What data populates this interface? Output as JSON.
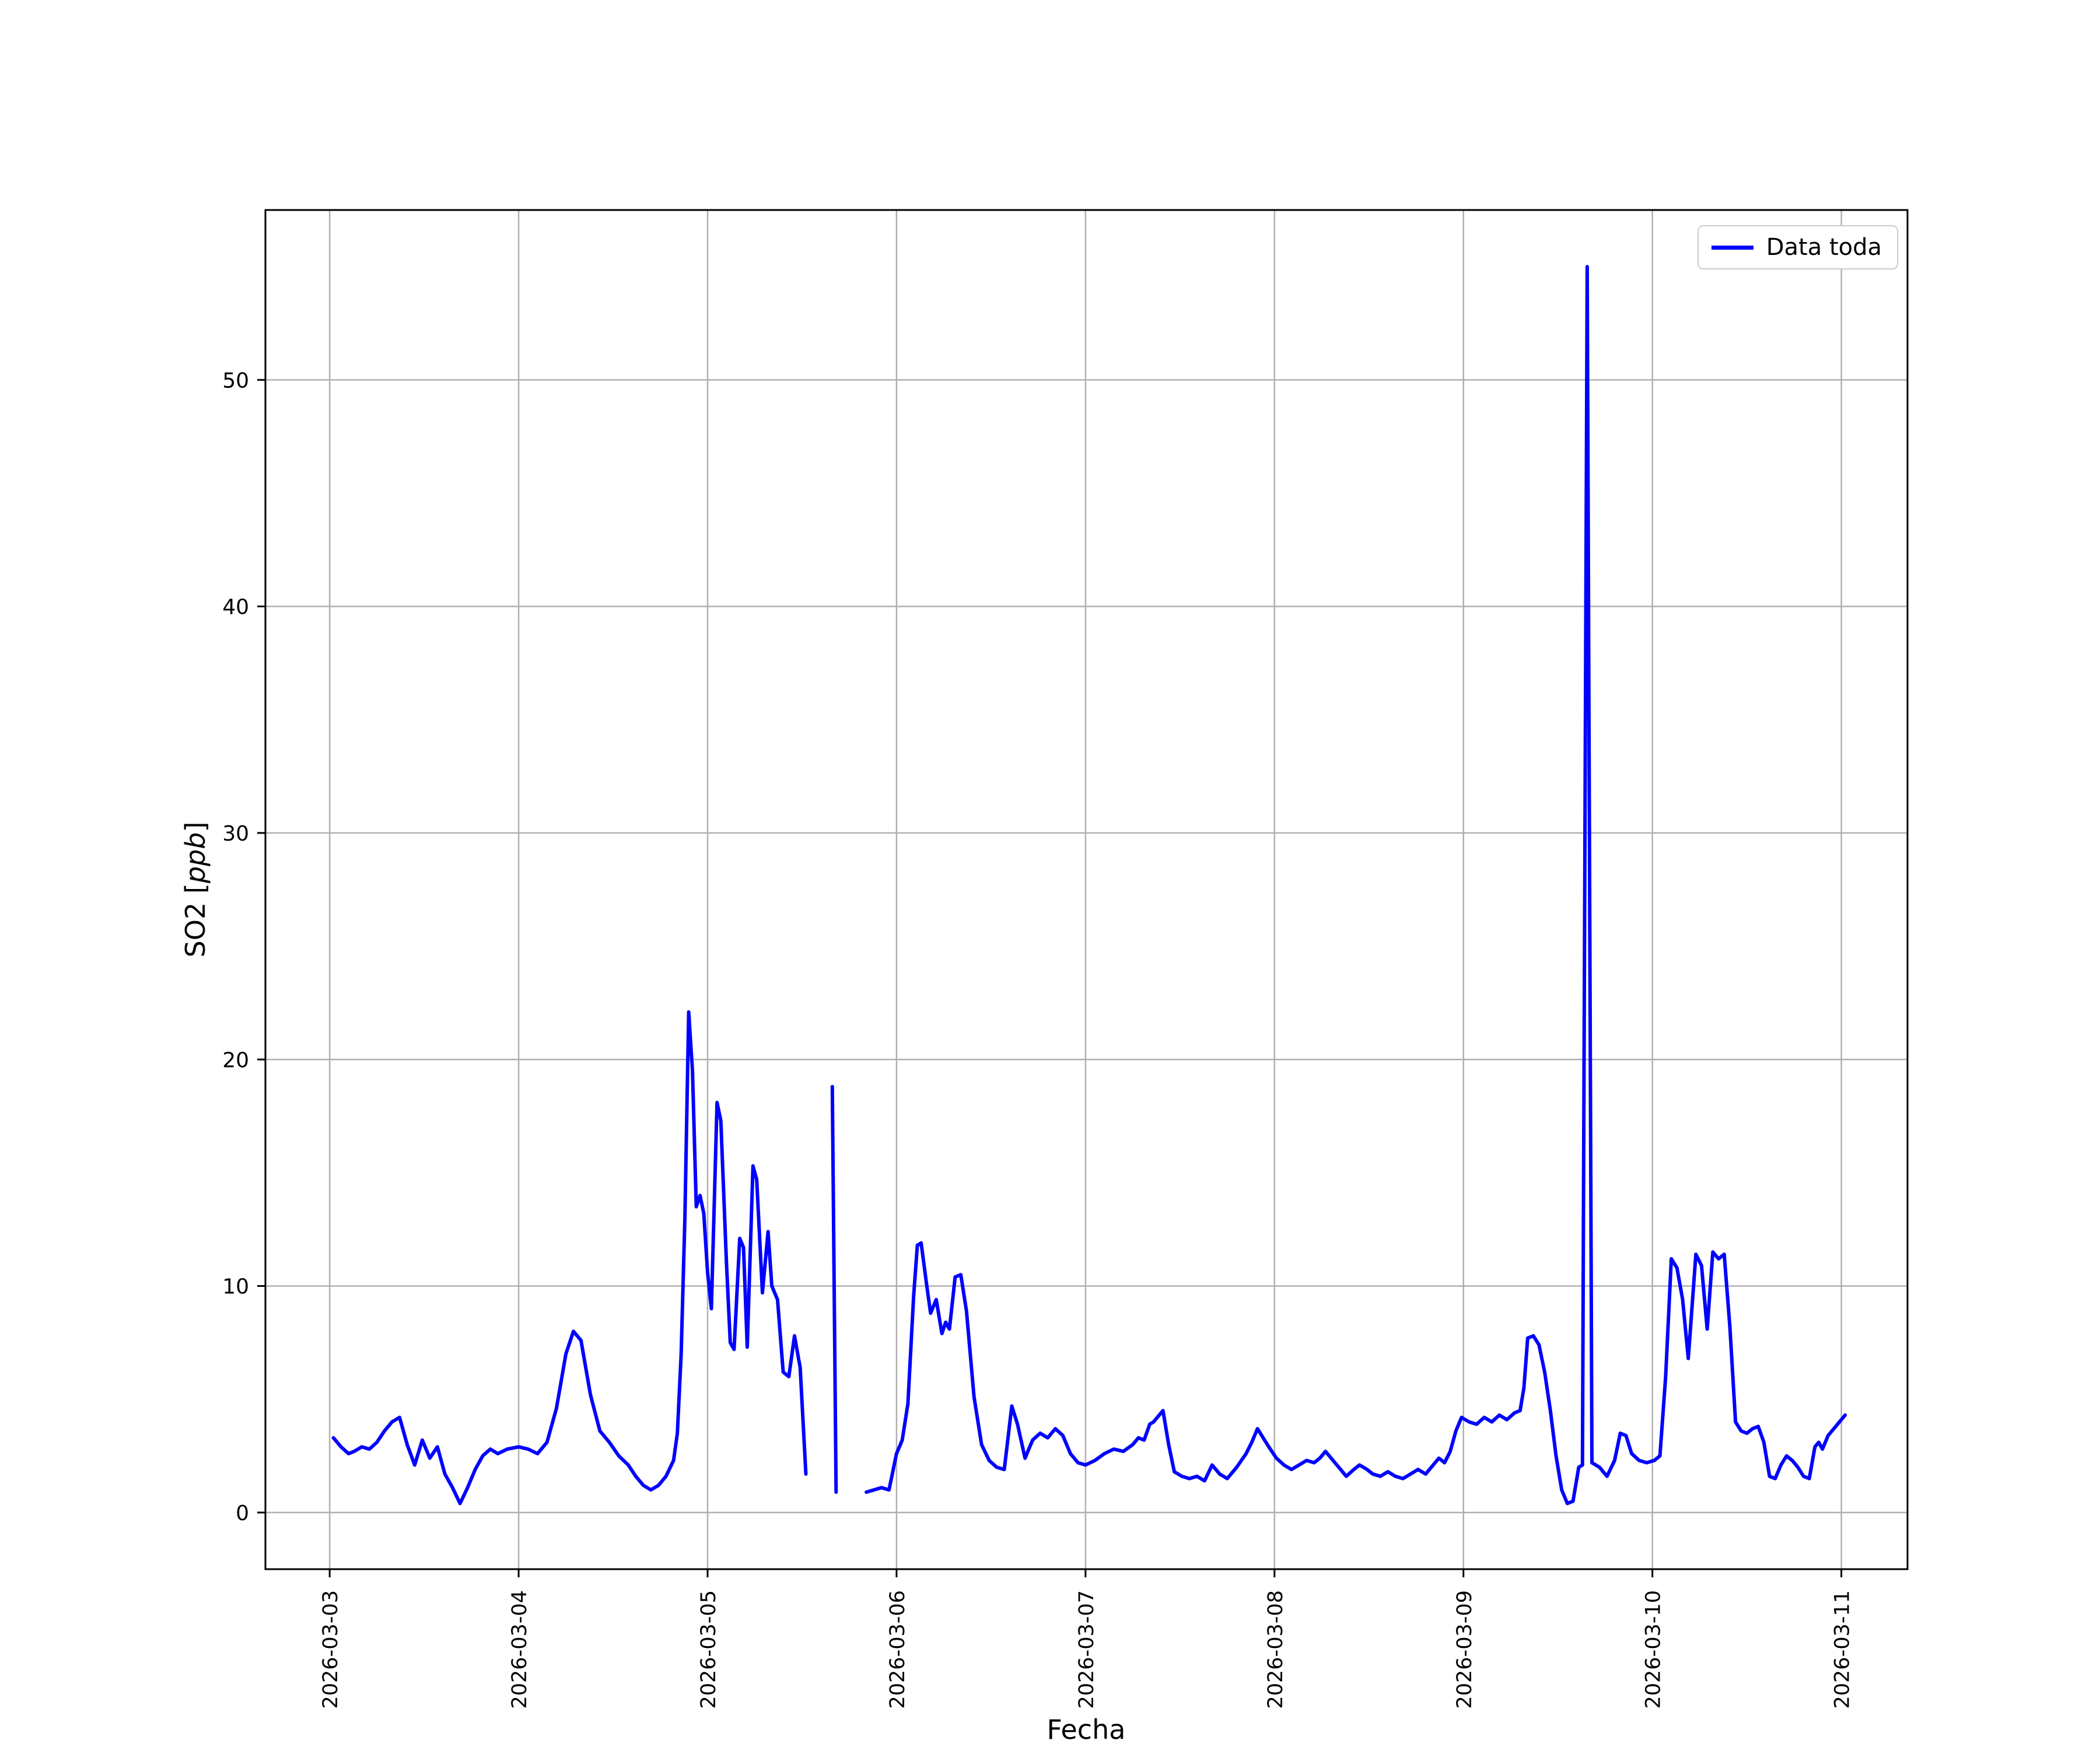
{
  "chart_data": {
    "type": "line",
    "title": "",
    "xlabel": "Fecha",
    "ylabel": "SO2 [ppb]",
    "ylabel_prefix": "SO2 [",
    "ylabel_italic": "ppb",
    "ylabel_suffix": "]",
    "x_unit": "days since 2026-03-03",
    "xlim": [
      -0.34,
      8.35
    ],
    "ylim": [
      -2.5,
      57.5
    ],
    "grid": true,
    "grid_color": "#b0b0b0",
    "line_color": "#0000ff",
    "x_ticks": [
      0,
      1,
      2,
      3,
      4,
      5,
      6,
      7,
      8
    ],
    "x_tick_labels": [
      "2026-03-03",
      "2026-03-04",
      "2026-03-05",
      "2026-03-06",
      "2026-03-07",
      "2026-03-08",
      "2026-03-09",
      "2026-03-10",
      "2026-03-11"
    ],
    "y_ticks": [
      0,
      10,
      20,
      30,
      40,
      50
    ],
    "y_tick_labels": [
      "0",
      "10",
      "20",
      "30",
      "40",
      "50"
    ],
    "legend": {
      "label": "Data toda",
      "position": "upper right"
    },
    "series": [
      {
        "name": "Data toda",
        "points": [
          [
            0.02,
            3.3
          ],
          [
            0.06,
            2.9
          ],
          [
            0.1,
            2.6
          ],
          [
            0.13,
            2.7
          ],
          [
            0.17,
            2.9
          ],
          [
            0.21,
            2.8
          ],
          [
            0.25,
            3.1
          ],
          [
            0.29,
            3.6
          ],
          [
            0.33,
            4.0
          ],
          [
            0.37,
            4.2
          ],
          [
            0.41,
            3.0
          ],
          [
            0.45,
            2.1
          ],
          [
            0.49,
            3.2
          ],
          [
            0.53,
            2.4
          ],
          [
            0.57,
            2.9
          ],
          [
            0.61,
            1.7
          ],
          [
            0.65,
            1.1
          ],
          [
            0.69,
            0.4
          ],
          [
            0.73,
            1.1
          ],
          [
            0.77,
            1.9
          ],
          [
            0.81,
            2.5
          ],
          [
            0.85,
            2.8
          ],
          [
            0.89,
            2.6
          ],
          [
            0.94,
            2.8
          ],
          [
            1.0,
            2.9
          ],
          [
            1.05,
            2.8
          ],
          [
            1.1,
            2.6
          ],
          [
            1.15,
            3.1
          ],
          [
            1.2,
            4.6
          ],
          [
            1.25,
            7.0
          ],
          [
            1.29,
            8.0
          ],
          [
            1.33,
            7.6
          ],
          [
            1.38,
            5.2
          ],
          [
            1.43,
            3.6
          ],
          [
            1.48,
            3.1
          ],
          [
            1.53,
            2.5
          ],
          [
            1.58,
            2.1
          ],
          [
            1.62,
            1.6
          ],
          [
            1.66,
            1.2
          ],
          [
            1.7,
            1.0
          ],
          [
            1.74,
            1.2
          ],
          [
            1.78,
            1.6
          ],
          [
            1.82,
            2.3
          ],
          [
            1.84,
            3.5
          ],
          [
            1.86,
            7.0
          ],
          [
            1.88,
            13.0
          ],
          [
            1.9,
            22.1
          ],
          [
            1.92,
            19.5
          ],
          [
            1.94,
            13.5
          ],
          [
            1.96,
            14.0
          ],
          [
            1.98,
            13.2
          ],
          [
            2.0,
            10.6
          ],
          [
            2.02,
            9.0
          ],
          [
            2.05,
            18.1
          ],
          [
            2.07,
            17.3
          ],
          [
            2.1,
            11.0
          ],
          [
            2.12,
            7.5
          ],
          [
            2.14,
            7.2
          ],
          [
            2.17,
            12.1
          ],
          [
            2.19,
            11.7
          ],
          [
            2.21,
            7.3
          ],
          [
            2.24,
            15.3
          ],
          [
            2.26,
            14.7
          ],
          [
            2.29,
            9.7
          ],
          [
            2.32,
            12.4
          ],
          [
            2.34,
            10.0
          ],
          [
            2.37,
            9.4
          ],
          [
            2.4,
            6.2
          ],
          [
            2.43,
            6.0
          ],
          [
            2.46,
            7.8
          ],
          [
            2.49,
            6.4
          ],
          [
            2.52,
            1.7
          ],
          null,
          [
            2.66,
            18.8
          ],
          [
            2.68,
            0.9
          ],
          null,
          [
            2.84,
            0.9
          ],
          [
            2.88,
            1.0
          ],
          [
            2.92,
            1.1
          ],
          [
            2.96,
            1.0
          ],
          [
            3.0,
            2.6
          ],
          [
            3.03,
            3.2
          ],
          [
            3.06,
            4.8
          ],
          [
            3.09,
            9.5
          ],
          [
            3.11,
            11.8
          ],
          [
            3.13,
            11.9
          ],
          [
            3.16,
            10.0
          ],
          [
            3.18,
            8.8
          ],
          [
            3.21,
            9.4
          ],
          [
            3.24,
            7.9
          ],
          [
            3.26,
            8.4
          ],
          [
            3.28,
            8.1
          ],
          [
            3.31,
            10.4
          ],
          [
            3.34,
            10.5
          ],
          [
            3.37,
            8.9
          ],
          [
            3.41,
            5.1
          ],
          [
            3.45,
            3.0
          ],
          [
            3.49,
            2.3
          ],
          [
            3.53,
            2.0
          ],
          [
            3.57,
            1.9
          ],
          [
            3.61,
            4.7
          ],
          [
            3.64,
            3.9
          ],
          [
            3.68,
            2.4
          ],
          [
            3.72,
            3.2
          ],
          [
            3.76,
            3.5
          ],
          [
            3.8,
            3.3
          ],
          [
            3.84,
            3.7
          ],
          [
            3.88,
            3.4
          ],
          [
            3.92,
            2.6
          ],
          [
            3.96,
            2.2
          ],
          [
            4.0,
            2.1
          ],
          [
            4.05,
            2.3
          ],
          [
            4.1,
            2.6
          ],
          [
            4.15,
            2.8
          ],
          [
            4.2,
            2.7
          ],
          [
            4.25,
            3.0
          ],
          [
            4.28,
            3.3
          ],
          [
            4.31,
            3.2
          ],
          [
            4.34,
            3.9
          ],
          [
            4.36,
            4.0
          ],
          [
            4.39,
            4.3
          ],
          [
            4.41,
            4.5
          ],
          [
            4.44,
            3.0
          ],
          [
            4.47,
            1.8
          ],
          [
            4.51,
            1.6
          ],
          [
            4.55,
            1.5
          ],
          [
            4.59,
            1.6
          ],
          [
            4.63,
            1.4
          ],
          [
            4.67,
            2.1
          ],
          [
            4.71,
            1.7
          ],
          [
            4.75,
            1.5
          ],
          [
            4.8,
            2.0
          ],
          [
            4.85,
            2.6
          ],
          [
            4.88,
            3.1
          ],
          [
            4.91,
            3.7
          ],
          [
            4.94,
            3.3
          ],
          [
            4.97,
            2.9
          ],
          [
            5.01,
            2.4
          ],
          [
            5.05,
            2.1
          ],
          [
            5.09,
            1.9
          ],
          [
            5.13,
            2.1
          ],
          [
            5.17,
            2.3
          ],
          [
            5.21,
            2.2
          ],
          [
            5.24,
            2.4
          ],
          [
            5.27,
            2.7
          ],
          [
            5.31,
            2.3
          ],
          [
            5.35,
            1.9
          ],
          [
            5.38,
            1.6
          ],
          [
            5.42,
            1.9
          ],
          [
            5.45,
            2.1
          ],
          [
            5.49,
            1.9
          ],
          [
            5.52,
            1.7
          ],
          [
            5.56,
            1.6
          ],
          [
            5.6,
            1.8
          ],
          [
            5.64,
            1.6
          ],
          [
            5.68,
            1.5
          ],
          [
            5.72,
            1.7
          ],
          [
            5.76,
            1.9
          ],
          [
            5.8,
            1.7
          ],
          [
            5.84,
            2.1
          ],
          [
            5.87,
            2.4
          ],
          [
            5.9,
            2.2
          ],
          [
            5.93,
            2.7
          ],
          [
            5.96,
            3.6
          ],
          [
            5.99,
            4.2
          ],
          [
            6.03,
            4.0
          ],
          [
            6.07,
            3.9
          ],
          [
            6.11,
            4.2
          ],
          [
            6.15,
            4.0
          ],
          [
            6.19,
            4.3
          ],
          [
            6.23,
            4.1
          ],
          [
            6.27,
            4.4
          ],
          [
            6.3,
            4.5
          ],
          [
            6.32,
            5.5
          ],
          [
            6.34,
            7.7
          ],
          [
            6.37,
            7.8
          ],
          [
            6.4,
            7.4
          ],
          [
            6.43,
            6.2
          ],
          [
            6.46,
            4.5
          ],
          [
            6.49,
            2.5
          ],
          [
            6.52,
            1.0
          ],
          [
            6.55,
            0.4
          ],
          [
            6.58,
            0.5
          ],
          [
            6.61,
            2.0
          ],
          [
            6.63,
            2.1
          ],
          [
            6.655,
            55.0
          ],
          [
            6.68,
            2.2
          ],
          [
            6.72,
            2.0
          ],
          [
            6.76,
            1.6
          ],
          [
            6.8,
            2.3
          ],
          [
            6.83,
            3.5
          ],
          [
            6.86,
            3.4
          ],
          [
            6.89,
            2.6
          ],
          [
            6.93,
            2.3
          ],
          [
            6.97,
            2.2
          ],
          [
            7.01,
            2.3
          ],
          [
            7.04,
            2.5
          ],
          [
            7.07,
            6.0
          ],
          [
            7.1,
            11.2
          ],
          [
            7.13,
            10.8
          ],
          [
            7.16,
            9.4
          ],
          [
            7.19,
            6.8
          ],
          [
            7.23,
            11.4
          ],
          [
            7.26,
            10.9
          ],
          [
            7.29,
            8.1
          ],
          [
            7.32,
            11.5
          ],
          [
            7.35,
            11.2
          ],
          [
            7.38,
            11.4
          ],
          [
            7.41,
            8.2
          ],
          [
            7.44,
            4.0
          ],
          [
            7.47,
            3.6
          ],
          [
            7.5,
            3.5
          ],
          [
            7.53,
            3.7
          ],
          [
            7.56,
            3.8
          ],
          [
            7.59,
            3.1
          ],
          [
            7.62,
            1.6
          ],
          [
            7.65,
            1.5
          ],
          [
            7.68,
            2.1
          ],
          [
            7.71,
            2.5
          ],
          [
            7.74,
            2.3
          ],
          [
            7.77,
            2.0
          ],
          [
            7.8,
            1.6
          ],
          [
            7.83,
            1.5
          ],
          [
            7.86,
            2.9
          ],
          [
            7.88,
            3.1
          ],
          [
            7.9,
            2.8
          ],
          [
            7.93,
            3.4
          ],
          [
            7.96,
            3.7
          ],
          [
            7.99,
            4.0
          ],
          [
            8.02,
            4.3
          ]
        ]
      }
    ]
  }
}
